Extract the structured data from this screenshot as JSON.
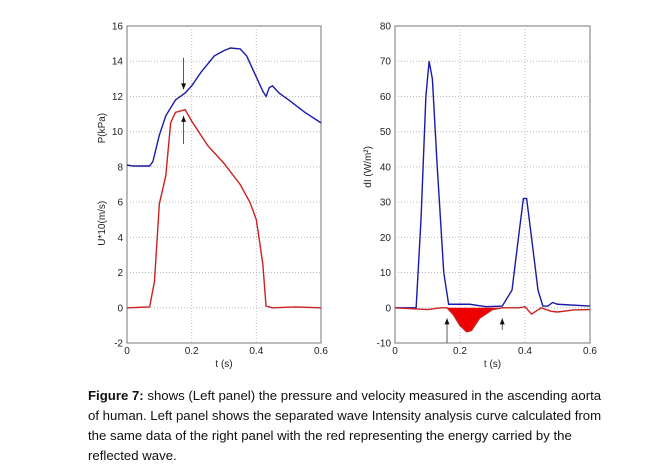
{
  "chart_data": [
    {
      "type": "line",
      "xlabel": "t (s)",
      "ylabels": [
        "P(kPa)",
        "U*10(m/s)"
      ],
      "xlim": [
        0,
        0.6
      ],
      "ylim": [
        -2,
        16
      ],
      "xticks": [
        "0",
        "0.2",
        "0.4",
        "0.6"
      ],
      "yticks": [
        "-2",
        "0",
        "2",
        "4",
        "6",
        "8",
        "10",
        "12",
        "14",
        "16"
      ],
      "grid": true,
      "series": [
        {
          "color": "#1a1aa8",
          "points": [
            [
              0,
              8.1
            ],
            [
              0.02,
              8.05
            ],
            [
              0.07,
              8.05
            ],
            [
              0.08,
              8.3
            ],
            [
              0.1,
              9.8
            ],
            [
              0.12,
              10.9
            ],
            [
              0.15,
              11.8
            ],
            [
              0.18,
              12.2
            ],
            [
              0.2,
              12.6
            ],
            [
              0.23,
              13.4
            ],
            [
              0.27,
              14.3
            ],
            [
              0.3,
              14.6
            ],
            [
              0.32,
              14.75
            ],
            [
              0.35,
              14.7
            ],
            [
              0.37,
              14.3
            ],
            [
              0.4,
              13.1
            ],
            [
              0.42,
              12.3
            ],
            [
              0.43,
              12.0
            ],
            [
              0.44,
              12.5
            ],
            [
              0.45,
              12.6
            ],
            [
              0.47,
              12.2
            ],
            [
              0.5,
              11.8
            ],
            [
              0.55,
              11.1
            ],
            [
              0.6,
              10.5
            ]
          ]
        },
        {
          "color": "#cc2020",
          "points": [
            [
              0,
              0
            ],
            [
              0.07,
              0.05
            ],
            [
              0.085,
              1.5
            ],
            [
              0.1,
              5.9
            ],
            [
              0.12,
              7.5
            ],
            [
              0.135,
              10.5
            ],
            [
              0.15,
              11.1
            ],
            [
              0.18,
              11.25
            ],
            [
              0.2,
              10.6
            ],
            [
              0.25,
              9.2
            ],
            [
              0.3,
              8.2
            ],
            [
              0.35,
              7.0
            ],
            [
              0.38,
              6.0
            ],
            [
              0.4,
              5.0
            ],
            [
              0.42,
              2.5
            ],
            [
              0.43,
              0.1
            ],
            [
              0.45,
              0
            ],
            [
              0.52,
              0.05
            ],
            [
              0.6,
              0
            ]
          ]
        }
      ],
      "arrows": [
        [
          0.175,
          14.2,
          0.175,
          12.4
        ],
        [
          0.175,
          9.3,
          0.175,
          10.9
        ]
      ]
    },
    {
      "type": "line",
      "xlabel": "t (s)",
      "ylabel": "dI (W/m²)",
      "xlim": [
        0,
        0.6
      ],
      "ylim": [
        -10,
        80
      ],
      "xticks": [
        "0",
        "0.2",
        "0.4",
        "0.6"
      ],
      "yticks": [
        "-10",
        "0",
        "10",
        "20",
        "30",
        "40",
        "50",
        "60",
        "70",
        "80"
      ],
      "grid": true,
      "series": [
        {
          "color": "#1a1aa8",
          "points": [
            [
              0,
              0
            ],
            [
              0.065,
              0
            ],
            [
              0.08,
              25
            ],
            [
              0.095,
              60
            ],
            [
              0.105,
              70
            ],
            [
              0.115,
              65
            ],
            [
              0.13,
              40
            ],
            [
              0.15,
              10
            ],
            [
              0.165,
              1
            ],
            [
              0.2,
              1
            ],
            [
              0.23,
              1
            ],
            [
              0.28,
              0.3
            ],
            [
              0.33,
              0.5
            ],
            [
              0.36,
              5
            ],
            [
              0.38,
              20
            ],
            [
              0.395,
              31
            ],
            [
              0.405,
              31
            ],
            [
              0.42,
              20
            ],
            [
              0.44,
              5
            ],
            [
              0.455,
              0.5
            ],
            [
              0.47,
              0.5
            ],
            [
              0.485,
              1.5
            ],
            [
              0.5,
              1
            ],
            [
              0.6,
              0.5
            ]
          ]
        },
        {
          "color": "#cc2020",
          "fill_negative": true,
          "points": [
            [
              0,
              0
            ],
            [
              0.1,
              -0.5
            ],
            [
              0.14,
              0
            ],
            [
              0.16,
              0
            ],
            [
              0.18,
              -2
            ],
            [
              0.2,
              -5
            ],
            [
              0.22,
              -6.8
            ],
            [
              0.235,
              -6.5
            ],
            [
              0.26,
              -3
            ],
            [
              0.3,
              -0.5
            ],
            [
              0.33,
              0
            ],
            [
              0.38,
              0
            ],
            [
              0.4,
              0.3
            ],
            [
              0.42,
              -1.8
            ],
            [
              0.45,
              0
            ],
            [
              0.48,
              -1
            ],
            [
              0.5,
              -1.2
            ],
            [
              0.55,
              -0.6
            ],
            [
              0.6,
              -0.5
            ]
          ]
        }
      ],
      "arrows": [
        [
          0.16,
          -10,
          0.16,
          -3
        ],
        [
          0.33,
          -6.3,
          0.33,
          -3
        ]
      ]
    }
  ],
  "caption": {
    "label": "Figure 7:",
    "text": " shows (Left panel) the pressure and velocity measured in the ascending aorta of human. Left panel shows the separated wave Intensity analysis curve calculated from the same data of the right panel with the red representing the energy carried by the reflected wave."
  }
}
